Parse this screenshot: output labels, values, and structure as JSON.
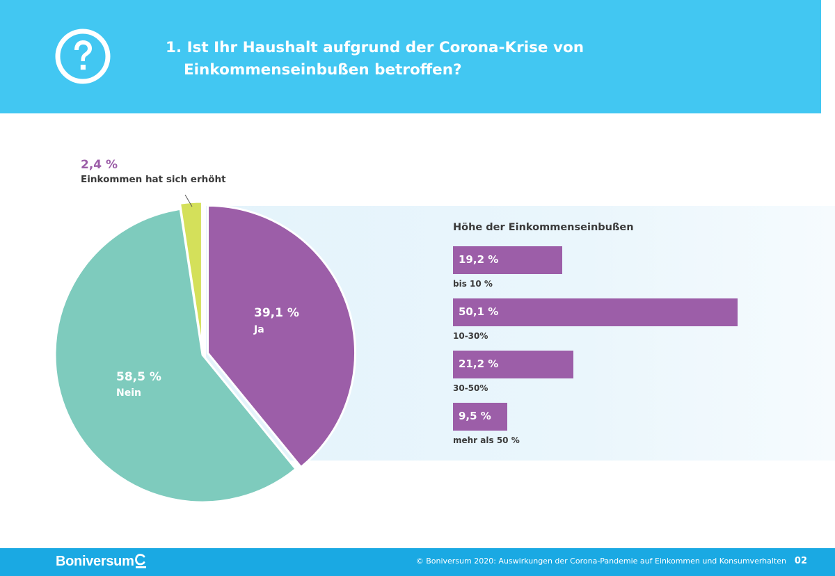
{
  "header": {
    "icon": "question-circle-icon",
    "title_line1": "1. Ist Ihr Haushalt aufgrund der Corona-Krise von",
    "title_line2": "Einkommenseinbußen betroffen?",
    "bg_color": "#42c7f2"
  },
  "chart_data": [
    {
      "type": "pie",
      "slices": [
        {
          "label": "Ja",
          "value": 39.1,
          "value_label": "39,1 %",
          "color": "#9c5ea8",
          "exploded": true
        },
        {
          "label": "Nein",
          "value": 58.5,
          "value_label": "58,5 %",
          "color": "#7ecbbd",
          "exploded": false
        },
        {
          "label": "Einkommen hat sich erhöht",
          "value": 2.4,
          "value_label": "2,4 %",
          "color": "#d4e05a",
          "exploded": true
        }
      ]
    },
    {
      "type": "bar",
      "orientation": "horizontal",
      "title": "Höhe der Einkommenseinbußen",
      "categories": [
        "bis 10 %",
        "10-30%",
        "30-50%",
        "mehr als 50 %"
      ],
      "values": [
        19.2,
        50.1,
        21.2,
        9.5
      ],
      "value_labels": [
        "19,2 %",
        "50,1 %",
        "21,2 %",
        "9,5 %"
      ],
      "color": "#9c5ea8"
    }
  ],
  "footer": {
    "brand": "Boniversum",
    "brand_icon": "boniversum-logo-icon",
    "copyright": "© Boniversum 2020: Auswirkungen der Corona-Pandemie auf Einkommen und Konsumverhalten",
    "page_number": "02",
    "bg_color": "#1aa9e3"
  }
}
